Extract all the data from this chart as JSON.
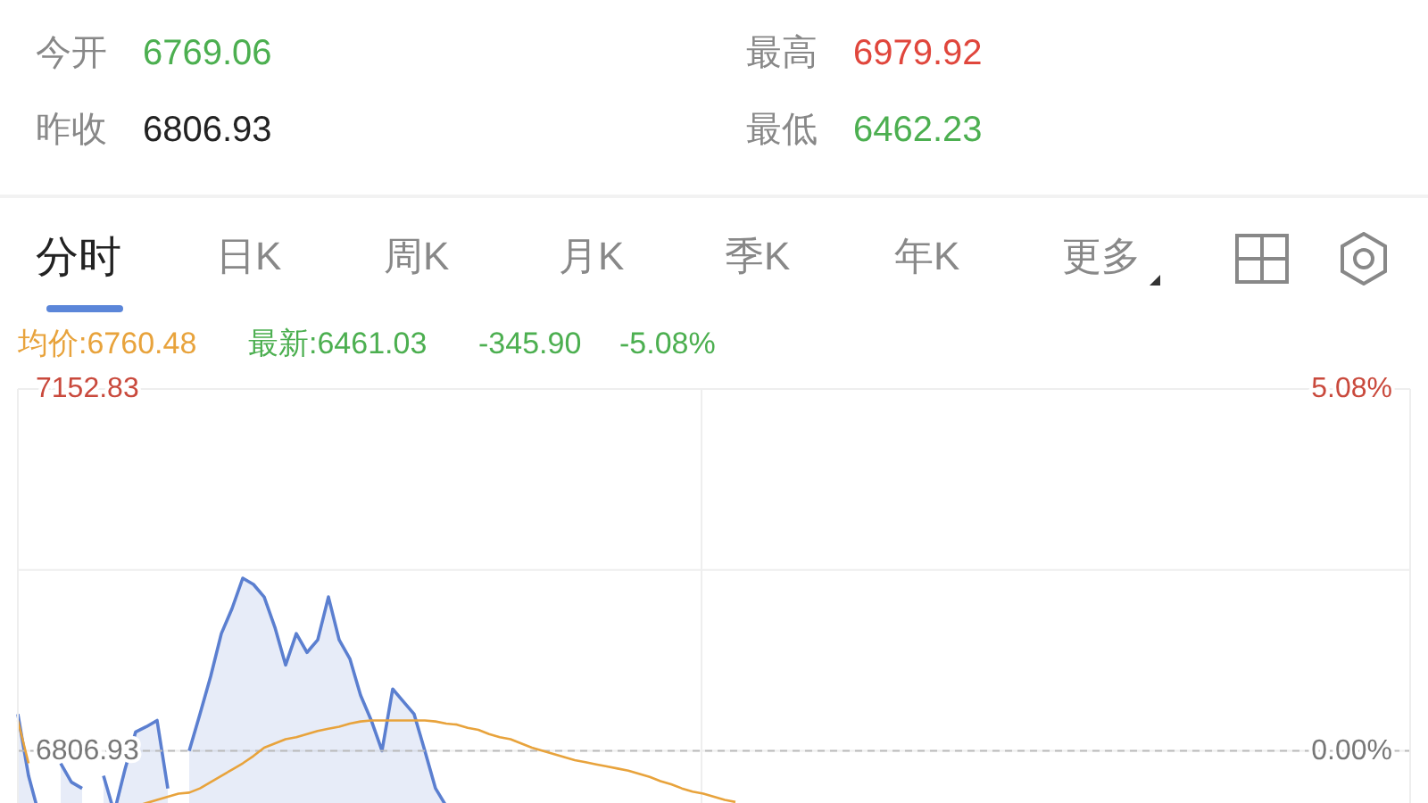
{
  "chart_data": {
    "type": "line",
    "categories": [
      null,
      null,
      null,
      null,
      null,
      null,
      null,
      null,
      null,
      null,
      null,
      null,
      null,
      null,
      null,
      null,
      null,
      null,
      null,
      null,
      null,
      null,
      null,
      null,
      null,
      null,
      null,
      null,
      null,
      null,
      null,
      null,
      null,
      null,
      null,
      null,
      null,
      null,
      null,
      null,
      null,
      null,
      null,
      null,
      null,
      null,
      null,
      null,
      null,
      null,
      null,
      null,
      null,
      null,
      null,
      null,
      null,
      null,
      null,
      null,
      null,
      null,
      null,
      null,
      null,
      null,
      null,
      null,
      null,
      null,
      null,
      null,
      null,
      null,
      null,
      null,
      null,
      null,
      null,
      null,
      null,
      null,
      null,
      null,
      null,
      null,
      null,
      null,
      null,
      null,
      null,
      null,
      null,
      null,
      null,
      null,
      null,
      null,
      null,
      null,
      null,
      null,
      null,
      null,
      null,
      null,
      null,
      null,
      null,
      null,
      null,
      null,
      null,
      null,
      null,
      null,
      null,
      null,
      null,
      null,
      null,
      null,
      null,
      null,
      null,
      null,
      null,
      null,
      null,
      null,
      null
    ],
    "series": [
      {
        "type": "area",
        "color": "#5b7fd0",
        "values": [
          6842,
          6783,
          6745,
          null,
          6795,
          6777,
          6771,
          null,
          6783,
          6748,
          6789,
          6825,
          6830,
          6836,
          6771,
          null,
          6807,
          6842,
          6878,
          6919,
          6943,
          6972,
          6966,
          6954,
          6925,
          6889,
          6919,
          6901,
          6913,
          6954,
          6913,
          6895,
          6860,
          6836,
          6807,
          6866,
          6854,
          6842,
          6807,
          6771,
          6754,
          6754,
          null,
          null,
          null,
          null,
          null,
          null,
          null,
          null,
          null,
          null,
          null,
          null,
          null,
          null,
          null,
          null,
          null,
          null,
          null,
          null,
          null,
          null,
          null,
          null,
          null,
          null,
          null,
          null,
          null,
          null,
          null,
          null,
          null,
          null,
          null,
          null,
          null,
          null,
          null,
          null,
          null,
          null,
          null,
          null,
          null,
          null,
          null,
          null,
          null,
          null,
          null,
          null,
          null,
          null,
          null,
          null,
          null,
          null,
          null,
          null,
          null,
          null,
          null,
          null,
          null,
          null,
          null,
          null,
          null,
          null,
          null,
          null,
          null,
          null,
          null,
          null,
          null,
          null,
          null,
          null,
          null,
          null,
          null,
          null,
          null,
          null,
          null,
          null,
          null
        ]
      },
      {
        "color": "#e8a33c",
        "values": [
          6836,
          6795,
          null,
          null,
          null,
          null,
          null,
          null,
          null,
          null,
          null,
          6754,
          6757,
          6760,
          6763,
          6766,
          6767,
          6771,
          6777,
          6783,
          6789,
          6795,
          6802,
          6810,
          6814,
          6818,
          6820,
          6823,
          6826,
          6828,
          6830,
          6833,
          6835,
          6836,
          6836,
          6836,
          6836,
          6836,
          6836,
          6835,
          6833,
          6832,
          6829,
          6827,
          6823,
          6820,
          6818,
          6814,
          6810,
          6807,
          6804,
          6801,
          6798,
          6796,
          6794,
          6792,
          6790,
          6788,
          6785,
          6782,
          6778,
          6775,
          6771,
          6768,
          6766,
          6763,
          6760,
          6758,
          null,
          null,
          null,
          null,
          null,
          null,
          null,
          null,
          null,
          null,
          null,
          null,
          null,
          null,
          null,
          null,
          null,
          null,
          null,
          null,
          null,
          null,
          null,
          null,
          null,
          null,
          null,
          null,
          null,
          null,
          null,
          null,
          null,
          null,
          null,
          null,
          null,
          null,
          null,
          null,
          null,
          null,
          null,
          null,
          null,
          null,
          null,
          null,
          null,
          null,
          null,
          null,
          null,
          null,
          null,
          null,
          null,
          null,
          null,
          null,
          null,
          null,
          null
        ]
      }
    ],
    "ylim": [
      6740,
      7152.83
    ],
    "yticks": [
      7152.83,
      {
        "value": 6979.88,
        "label": null
      },
      6806.93
    ],
    "y2lim": [
      -0.98,
      5.08
    ],
    "y2ticks": [
      {
        "value": 5.08,
        "label": "5.08%"
      },
      {
        "value": 0,
        "label": "0.00%"
      }
    ],
    "ref_lines": [
      {
        "axis": "y",
        "value": 6806.93,
        "color": "#bbbbbb",
        "line_style": "dashed"
      }
    ],
    "grid": true,
    "marker": "none",
    "annotations": [
      "今开",
      "6769.06",
      "最高",
      "6979.92",
      "昨收",
      "6806.93",
      "最低",
      "6462.23",
      "分时",
      "日K",
      "周K",
      "月K",
      "季K",
      "年K",
      "更多",
      "均价:6760.48",
      "最新:6461.03",
      "-345.90",
      "-5.08%"
    ]
  }
}
